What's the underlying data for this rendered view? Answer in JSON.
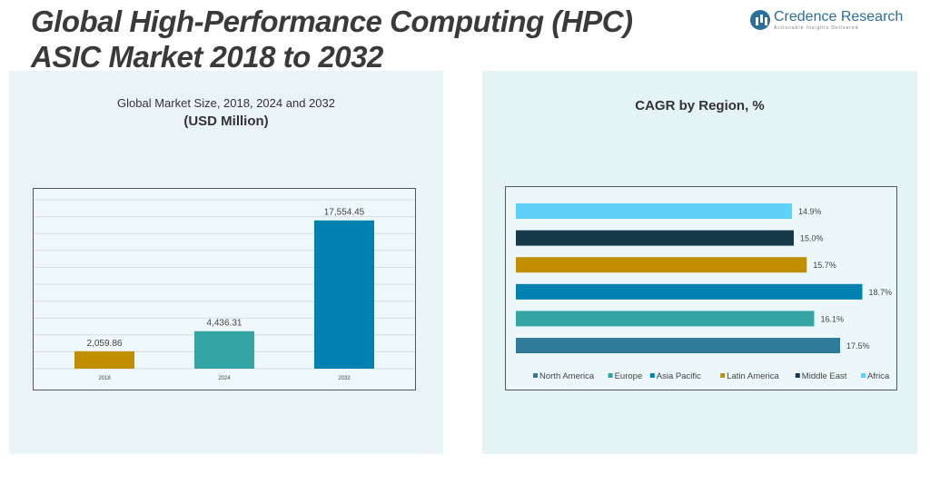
{
  "header": {
    "title_line1": "Global High-Performance Computing (HPC)",
    "title_line2": "ASIC Market 2018 to 2032",
    "logo_name": "Credence Research",
    "logo_tagline": "Actionable Insights Delivered"
  },
  "left_panel": {
    "subtitle": "Global Market Size, 2018, 2024 and 2032",
    "unit": "(USD Million)"
  },
  "right_panel": {
    "title": "CAGR by Region, %"
  },
  "chart_data": [
    {
      "type": "bar",
      "title": "Global Market Size, 2018, 2024 and 2032",
      "ylabel": "(USD Million)",
      "categories": [
        "2018",
        "2024",
        "2032"
      ],
      "values": [
        2059.86,
        4436.31,
        17554.45
      ],
      "value_labels": [
        "2,059.86",
        "4,436.31",
        "17,554.45"
      ],
      "colors": [
        "#c08f00",
        "#33a3a3",
        "#0081b0"
      ],
      "ylim": [
        0,
        20000
      ],
      "grid": true
    },
    {
      "type": "bar",
      "orientation": "horizontal",
      "title": "CAGR by Region, %",
      "categories": [
        "North America",
        "Europe",
        "Asia Pacific",
        "Latin America",
        "Middle East",
        "Africa"
      ],
      "values": [
        17.5,
        16.1,
        18.7,
        15.7,
        15.0,
        14.9
      ],
      "value_labels": [
        "17.5%",
        "16.1%",
        "18.7%",
        "15.7%",
        "15.0%",
        "14.9%"
      ],
      "colors": [
        "#2e7b9a",
        "#33a3a3",
        "#0081b0",
        "#c08f00",
        "#173a4a",
        "#5fd0f8"
      ],
      "xlim": [
        0,
        20
      ],
      "legend": "bottom",
      "grid": false
    }
  ]
}
